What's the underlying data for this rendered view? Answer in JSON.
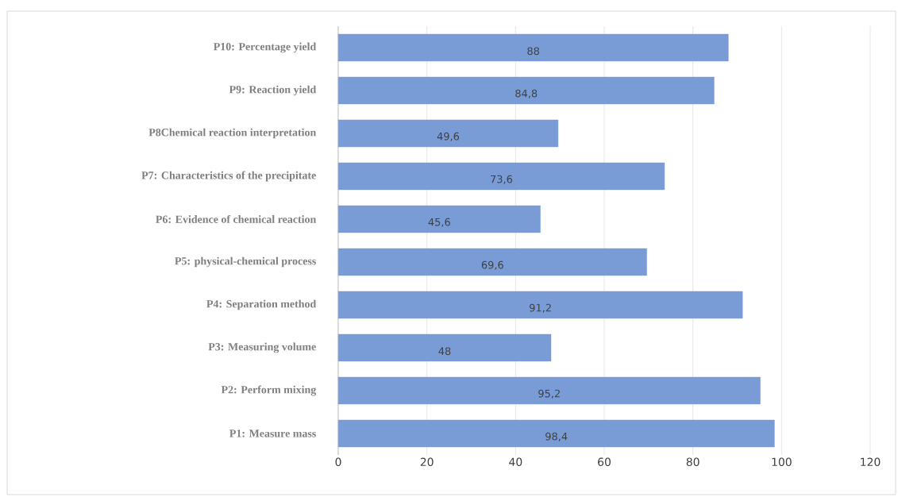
{
  "chart_data": {
    "type": "bar",
    "orientation": "horizontal",
    "categories": [
      "P10: Percentage yield",
      "P9: Reaction yield",
      "P8Chemical reaction interpretation",
      "P7: Characteristics of the precipitate",
      "P6: Evidence of chemical reaction",
      "P5: physical-chemical process",
      "P4: Separation method",
      "P3: Measuring volume",
      "P2: Perform mixing",
      "P1: Measure mass"
    ],
    "values": [
      88,
      84.8,
      49.6,
      73.6,
      45.6,
      69.6,
      91.2,
      48,
      95.2,
      98.4
    ],
    "value_labels": [
      "88",
      "84,8",
      "49,6",
      "73,6",
      "45,6",
      "69,6",
      "91,2",
      "48",
      "95,2",
      "98,4"
    ],
    "color": "#7a9cd6",
    "xlim": [
      0,
      120
    ],
    "xticks": [
      0,
      20,
      40,
      60,
      80,
      100,
      120
    ],
    "grid": "x"
  }
}
